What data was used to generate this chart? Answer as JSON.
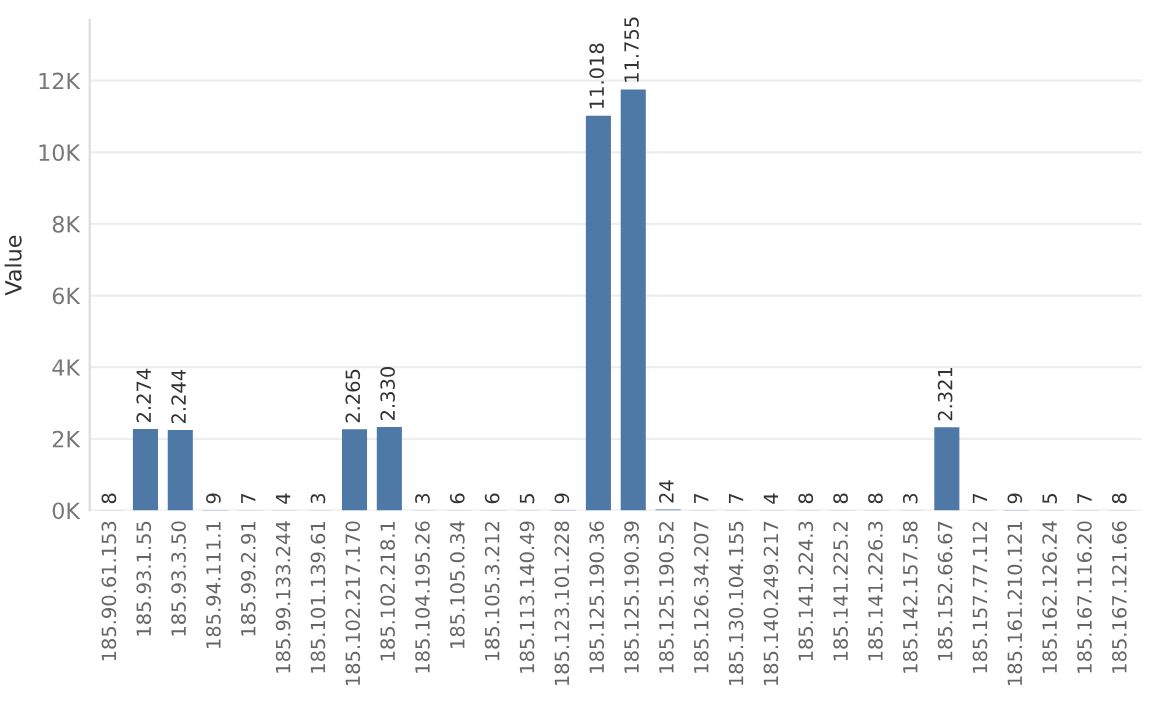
{
  "chart_data": {
    "type": "bar",
    "ylabel": "Value",
    "categories": [
      "185.90.61.153",
      "185.93.1.55",
      "185.93.3.50",
      "185.94.111.1",
      "185.99.2.91",
      "185.99.133.244",
      "185.101.139.61",
      "185.102.217.170",
      "185.102.218.1",
      "185.104.195.26",
      "185.105.0.34",
      "185.105.3.212",
      "185.113.140.49",
      "185.123.101.228",
      "185.125.190.36",
      "185.125.190.39",
      "185.125.190.52",
      "185.126.34.207",
      "185.130.104.155",
      "185.140.249.217",
      "185.141.224.3",
      "185.141.225.2",
      "185.141.226.3",
      "185.142.157.58",
      "185.152.66.67",
      "185.157.77.112",
      "185.161.210.121",
      "185.162.126.24",
      "185.167.116.20",
      "185.167.121.66"
    ],
    "values": [
      8,
      2274,
      2244,
      9,
      7,
      4,
      3,
      2265,
      2330,
      3,
      6,
      6,
      5,
      9,
      11018,
      11755,
      24,
      7,
      7,
      4,
      8,
      8,
      8,
      3,
      2321,
      7,
      9,
      5,
      7,
      8
    ],
    "value_labels": [
      "8",
      "2.274",
      "2.244",
      "9",
      "7",
      "4",
      "3",
      "2.265",
      "2.330",
      "3",
      "6",
      "6",
      "5",
      "9",
      "11.018",
      "11.755",
      "24",
      "7",
      "7",
      "4",
      "8",
      "8",
      "8",
      "3",
      "2.321",
      "7",
      "9",
      "5",
      "7",
      "8"
    ],
    "color": "#4e79a7",
    "ylim": [
      0,
      13700
    ],
    "yticks": [
      {
        "value": 0,
        "label": "0K"
      },
      {
        "value": 2000,
        "label": "2K"
      },
      {
        "value": 4000,
        "label": "4K"
      },
      {
        "value": 6000,
        "label": "6K"
      },
      {
        "value": 8000,
        "label": "8K"
      },
      {
        "value": 10000,
        "label": "10K"
      },
      {
        "value": 12000,
        "label": "12K"
      }
    ],
    "grid": "y"
  }
}
